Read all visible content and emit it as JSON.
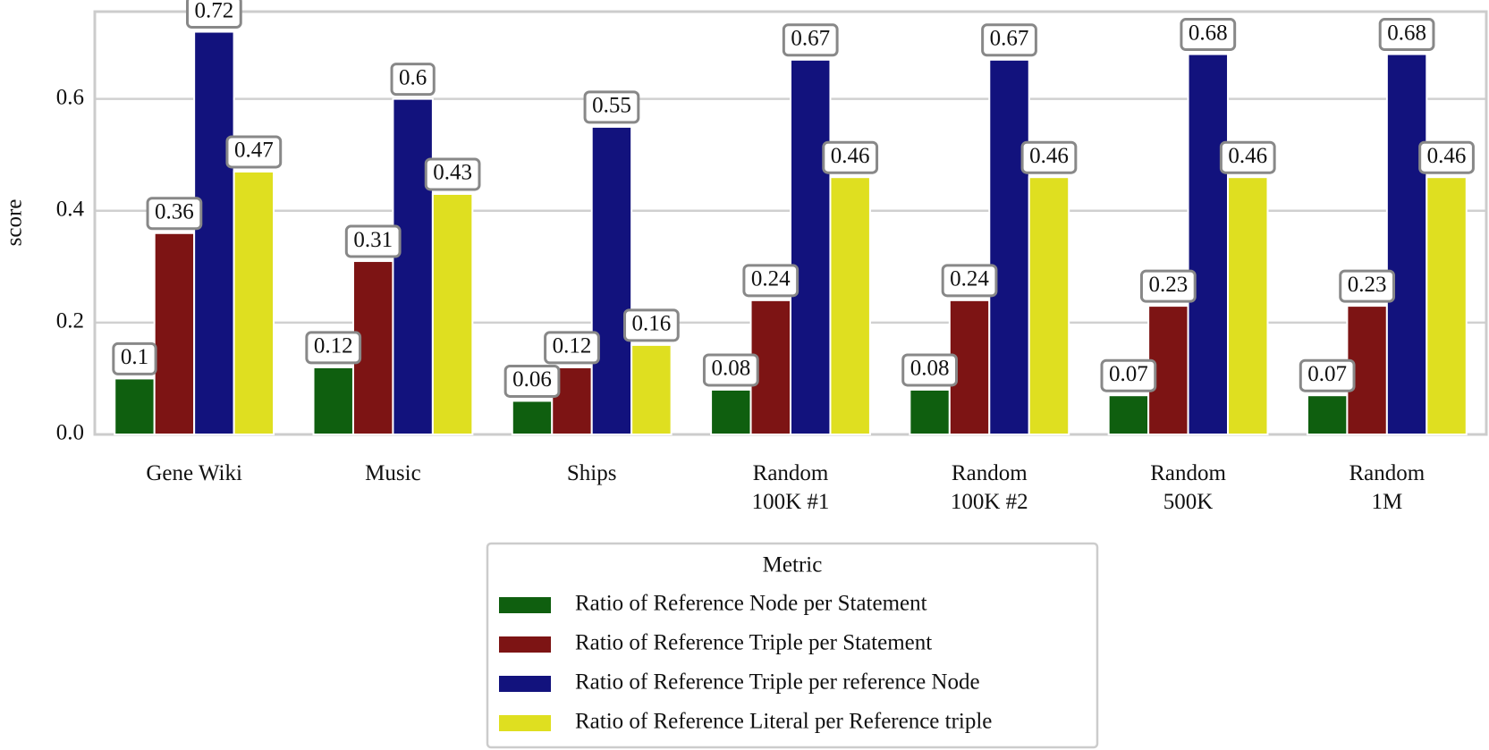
{
  "chart_data": {
    "type": "bar",
    "categories": [
      "Gene Wiki",
      "Music",
      "Ships",
      "Random\n100K #1",
      "Random\n100K #2",
      "Random\n500K",
      "Random\n1M"
    ],
    "series": [
      {
        "name": "Ratio of Reference Node per Statement",
        "color": "#0f5f0f",
        "values": [
          0.1,
          0.12,
          0.06,
          0.08,
          0.08,
          0.07,
          0.07
        ]
      },
      {
        "name": "Ratio of Reference Triple per Statement",
        "color": "#7d1414",
        "values": [
          0.36,
          0.31,
          0.12,
          0.24,
          0.24,
          0.23,
          0.23
        ]
      },
      {
        "name": "Ratio of Reference Triple per reference Node",
        "color": "#12127d",
        "values": [
          0.72,
          0.6,
          0.55,
          0.67,
          0.67,
          0.68,
          0.68
        ]
      },
      {
        "name": "Ratio of Reference Literal per Reference triple",
        "color": "#dfdf20",
        "values": [
          0.47,
          0.43,
          0.16,
          0.46,
          0.46,
          0.46,
          0.46
        ]
      }
    ],
    "y_label": "score",
    "ylim": [
      0,
      0.756
    ],
    "yticks": [
      {
        "value": 0,
        "label": "0.0"
      },
      0.2,
      0.4,
      0.6
    ],
    "grid": true,
    "legend_title": "Metric",
    "legend": "bottom-center"
  }
}
